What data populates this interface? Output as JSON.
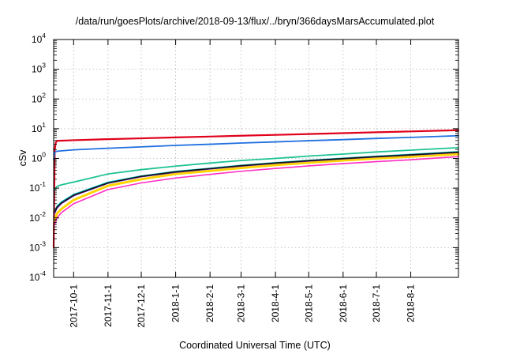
{
  "chart_data": {
    "type": "line",
    "title": "/data/run/goesPlots/archive/2018-09-13/flux/../bryn/366daysMarsAccumulated.plot",
    "xlabel": "Coordinated Universal Time (UTC)",
    "ylabel": "cSv",
    "xlim": [
      "2017-09-13",
      "2018-09-13"
    ],
    "ylim": [
      0.0001,
      10000
    ],
    "yscale": "log",
    "grid": true,
    "legend": "none",
    "x_ticks": [
      "2017-10-1",
      "2017-11-1",
      "2017-12-1",
      "2018-1-1",
      "2018-2-1",
      "2018-3-1",
      "2018-4-1",
      "2018-5-1",
      "2018-6-1",
      "2018-7-1",
      "2018-8-1"
    ],
    "y_ticks": [
      {
        "base": "10",
        "exp": "-4",
        "value": 0.0001
      },
      {
        "base": "10",
        "exp": "-3",
        "value": 0.001
      },
      {
        "base": "10",
        "exp": "-2",
        "value": 0.01
      },
      {
        "base": "10",
        "exp": "-1",
        "value": 0.1
      },
      {
        "base": "10",
        "exp": "0",
        "value": 1
      },
      {
        "base": "10",
        "exp": "1",
        "value": 10
      },
      {
        "base": "10",
        "exp": "2",
        "value": 100
      },
      {
        "base": "10",
        "exp": "3",
        "value": 1000
      },
      {
        "base": "10",
        "exp": "4",
        "value": 10000
      }
    ],
    "series": [
      {
        "color": "#e0001b",
        "width": 2.2,
        "x": [
          "2017-09-13",
          "2017-09-14",
          "2017-09-15",
          "2017-09-16",
          "2017-10-01",
          "2017-11-01",
          "2017-12-01",
          "2018-01-01",
          "2018-02-01",
          "2018-03-01",
          "2018-04-01",
          "2018-05-01",
          "2018-06-01",
          "2018-07-01",
          "2018-08-01",
          "2018-09-13"
        ],
        "y": [
          0.001,
          2.0,
          3.5,
          3.9,
          4.1,
          4.45,
          4.75,
          5.1,
          5.45,
          5.8,
          6.2,
          6.6,
          7.1,
          7.6,
          8.1,
          8.9
        ]
      },
      {
        "color": "#1f6fe0",
        "width": 1.8,
        "x": [
          "2017-09-13",
          "2017-09-14",
          "2017-09-16",
          "2017-10-01",
          "2017-11-01",
          "2017-12-01",
          "2018-01-01",
          "2018-02-01",
          "2018-03-01",
          "2018-04-01",
          "2018-05-01",
          "2018-06-01",
          "2018-07-01",
          "2018-08-01",
          "2018-09-13"
        ],
        "y": [
          0.9,
          1.6,
          1.75,
          1.95,
          2.2,
          2.45,
          2.75,
          3.0,
          3.3,
          3.6,
          3.95,
          4.3,
          4.7,
          5.1,
          5.8
        ]
      },
      {
        "color": "#1ec493",
        "width": 1.8,
        "x": [
          "2017-09-14",
          "2017-09-16",
          "2017-09-20",
          "2017-10-01",
          "2017-11-01",
          "2017-12-01",
          "2018-01-01",
          "2018-02-01",
          "2018-03-01",
          "2018-04-01",
          "2018-05-01",
          "2018-06-01",
          "2018-07-01",
          "2018-08-01",
          "2018-09-13"
        ],
        "y": [
          0.09,
          0.115,
          0.13,
          0.16,
          0.3,
          0.42,
          0.55,
          0.7,
          0.85,
          1.0,
          1.2,
          1.4,
          1.65,
          1.9,
          2.3
        ]
      },
      {
        "color": "#ffd400",
        "width": 3.0,
        "x": [
          "2017-09-14",
          "2017-09-16",
          "2017-09-20",
          "2017-10-01",
          "2017-11-01",
          "2017-12-01",
          "2018-01-01",
          "2018-02-01",
          "2018-03-01",
          "2018-04-01",
          "2018-05-01",
          "2018-06-01",
          "2018-07-01",
          "2018-08-01",
          "2018-09-13"
        ],
        "y": [
          0.008,
          0.014,
          0.02,
          0.04,
          0.12,
          0.2,
          0.3,
          0.38,
          0.48,
          0.6,
          0.72,
          0.86,
          1.0,
          1.15,
          1.4
        ]
      },
      {
        "color": "#ff2ec4",
        "width": 1.6,
        "x": [
          "2017-09-14",
          "2017-09-16",
          "2017-09-20",
          "2017-10-01",
          "2017-11-01",
          "2017-12-01",
          "2018-01-01",
          "2018-02-01",
          "2018-03-01",
          "2018-04-01",
          "2018-05-01",
          "2018-06-01",
          "2018-07-01",
          "2018-08-01",
          "2018-09-13"
        ],
        "y": [
          0.006,
          0.01,
          0.015,
          0.03,
          0.09,
          0.15,
          0.22,
          0.29,
          0.37,
          0.46,
          0.56,
          0.67,
          0.78,
          0.9,
          1.15
        ]
      },
      {
        "color": "#12c8d8",
        "width": 1.4,
        "x": [
          "2017-09-14",
          "2017-09-16",
          "2017-09-20",
          "2017-10-01",
          "2017-11-01",
          "2017-12-01",
          "2018-01-01",
          "2018-02-01",
          "2018-03-01",
          "2018-04-01",
          "2018-05-01",
          "2018-06-01",
          "2018-07-01",
          "2018-08-01",
          "2018-09-13"
        ],
        "y": [
          0.018,
          0.025,
          0.035,
          0.062,
          0.16,
          0.26,
          0.37,
          0.47,
          0.59,
          0.73,
          0.87,
          1.03,
          1.2,
          1.38,
          1.7
        ]
      },
      {
        "color": "#7b2fc9",
        "width": 1.4,
        "x": [
          "2017-09-14",
          "2017-09-16",
          "2017-09-20",
          "2017-10-01",
          "2017-11-01",
          "2017-12-01",
          "2018-01-01",
          "2018-02-01",
          "2018-03-01",
          "2018-04-01",
          "2018-05-01",
          "2018-06-01",
          "2018-07-01",
          "2018-08-01",
          "2018-09-13"
        ],
        "y": [
          0.014,
          0.021,
          0.03,
          0.055,
          0.145,
          0.24,
          0.34,
          0.44,
          0.55,
          0.68,
          0.81,
          0.96,
          1.12,
          1.28,
          1.58
        ]
      },
      {
        "color": "#111111",
        "width": 1.6,
        "x": [
          "2017-09-14",
          "2017-09-16",
          "2017-09-20",
          "2017-10-01",
          "2017-11-01",
          "2017-12-01",
          "2018-01-01",
          "2018-02-01",
          "2018-03-01",
          "2018-04-01",
          "2018-05-01",
          "2018-06-01",
          "2018-07-01",
          "2018-08-01",
          "2018-09-13"
        ],
        "y": [
          0.016,
          0.023,
          0.032,
          0.058,
          0.15,
          0.25,
          0.355,
          0.455,
          0.57,
          0.7,
          0.84,
          0.99,
          1.15,
          1.32,
          1.63
        ]
      }
    ]
  }
}
